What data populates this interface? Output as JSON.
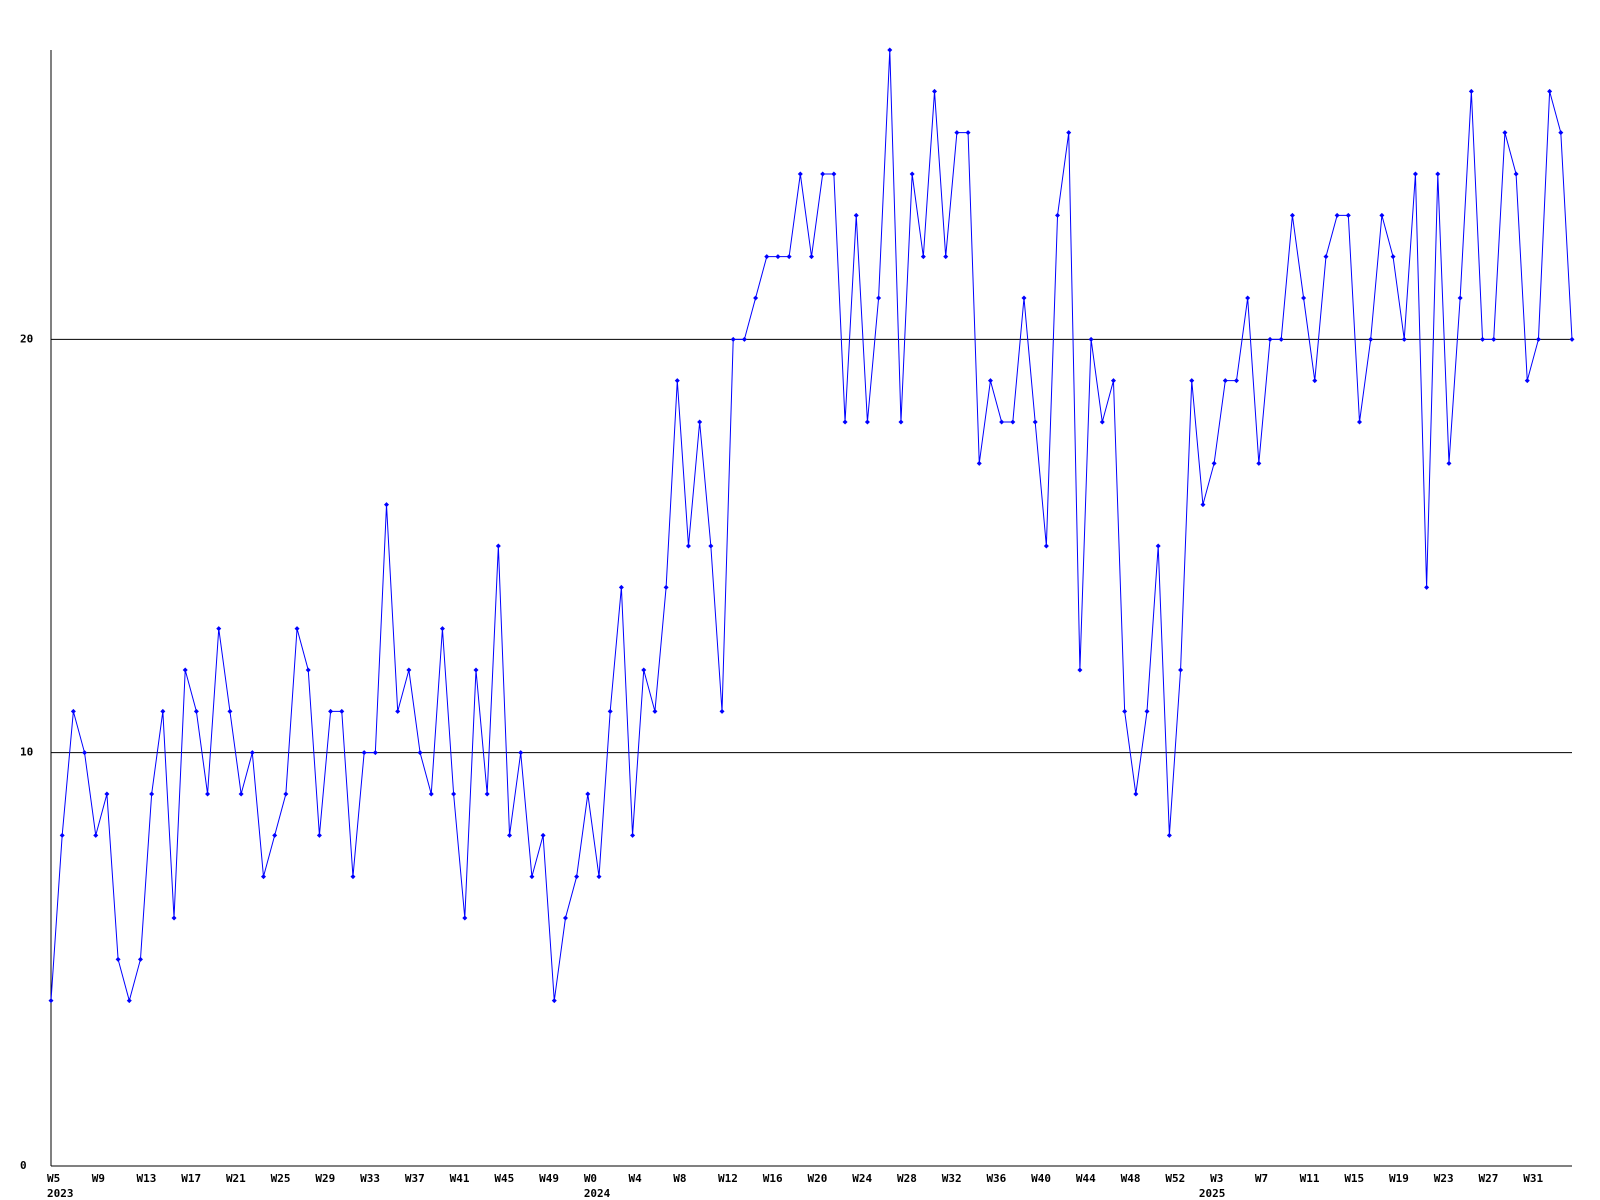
{
  "chart_data": {
    "type": "line",
    "categories": [
      "W5",
      null,
      null,
      null,
      "W9",
      null,
      null,
      null,
      "W13",
      null,
      null,
      null,
      "W17",
      null,
      null,
      null,
      "W21",
      null,
      null,
      null,
      "W25",
      null,
      null,
      null,
      "W29",
      null,
      null,
      null,
      "W33",
      null,
      null,
      null,
      "W37",
      null,
      null,
      null,
      "W41",
      null,
      null,
      null,
      "W45",
      null,
      null,
      null,
      "W49",
      null,
      null,
      null,
      "W0",
      null,
      null,
      null,
      "W4",
      null,
      null,
      null,
      "W8",
      null,
      null,
      null,
      "W12",
      null,
      null,
      null,
      "W16",
      null,
      null,
      null,
      "W20",
      null,
      null,
      null,
      "W24",
      null,
      null,
      null,
      "W28",
      null,
      null,
      null,
      "W32",
      null,
      null,
      null,
      "W36",
      null,
      null,
      null,
      "W40",
      null,
      null,
      null,
      "W44",
      null,
      null,
      null,
      "W48",
      null,
      null,
      null,
      "W52",
      null,
      null,
      null,
      "W3",
      null,
      null,
      null,
      "W7",
      null,
      null,
      null,
      "W11",
      null,
      null,
      null,
      "W15",
      null,
      null,
      null,
      "W19",
      null,
      null,
      null,
      "W23",
      null,
      null,
      null,
      "W27",
      null,
      null,
      null,
      "W31",
      null,
      null,
      null,
      null
    ],
    "year_categories": [
      "2023",
      null,
      null,
      null,
      null,
      null,
      null,
      null,
      null,
      null,
      null,
      null,
      null,
      null,
      null,
      null,
      null,
      null,
      null,
      null,
      null,
      null,
      null,
      null,
      null,
      null,
      null,
      null,
      null,
      null,
      null,
      null,
      null,
      null,
      null,
      null,
      null,
      null,
      null,
      null,
      null,
      null,
      null,
      null,
      null,
      null,
      null,
      null,
      "2024",
      null,
      null,
      null,
      null,
      null,
      null,
      null,
      null,
      null,
      null,
      null,
      null,
      null,
      null,
      null,
      null,
      null,
      null,
      null,
      null,
      null,
      null,
      null,
      null,
      null,
      null,
      null,
      null,
      null,
      null,
      null,
      null,
      null,
      null,
      null,
      null,
      null,
      null,
      null,
      null,
      null,
      null,
      null,
      null,
      null,
      null,
      null,
      null,
      null,
      null,
      null,
      null,
      null,
      null,
      "2025",
      null,
      null,
      null,
      null,
      null,
      null,
      null,
      null,
      null,
      null,
      null,
      null,
      null,
      null,
      null,
      null,
      null,
      null,
      null,
      null,
      null,
      null,
      null,
      null,
      null,
      null,
      null,
      null,
      null,
      null,
      null,
      null,
      null,
      null
    ],
    "series": [
      {
        "color": "#0000ff",
        "values": [
          4,
          8,
          11,
          10,
          8,
          9,
          5,
          4,
          5,
          9,
          11,
          6,
          12,
          11,
          9,
          13,
          11,
          9,
          10,
          7,
          8,
          9,
          13,
          12,
          8,
          11,
          11,
          7,
          10,
          10,
          16,
          11,
          12,
          10,
          9,
          13,
          9,
          6,
          12,
          9,
          15,
          8,
          10,
          7,
          8,
          4,
          6,
          7,
          9,
          7,
          11,
          14,
          8,
          12,
          11,
          14,
          19,
          15,
          18,
          15,
          11,
          20,
          20,
          21,
          22,
          22,
          22,
          24,
          22,
          24,
          24,
          18,
          23,
          18,
          21,
          27,
          18,
          24,
          22,
          26,
          22,
          25,
          25,
          17,
          19,
          18,
          18,
          21,
          18,
          15,
          23,
          25,
          12,
          20,
          18,
          19,
          11,
          9,
          11,
          15,
          8,
          12,
          19,
          16,
          17,
          19,
          19,
          21,
          17,
          20,
          20,
          23,
          21,
          19,
          22,
          23,
          23,
          18,
          20,
          23,
          22,
          20,
          24,
          14,
          24,
          17,
          21,
          26,
          20,
          20,
          25,
          24,
          19,
          20,
          26,
          25,
          20
        ]
      }
    ],
    "ylim": [
      0,
      27
    ],
    "yticks": [
      0,
      10,
      20
    ],
    "grid": true
  }
}
